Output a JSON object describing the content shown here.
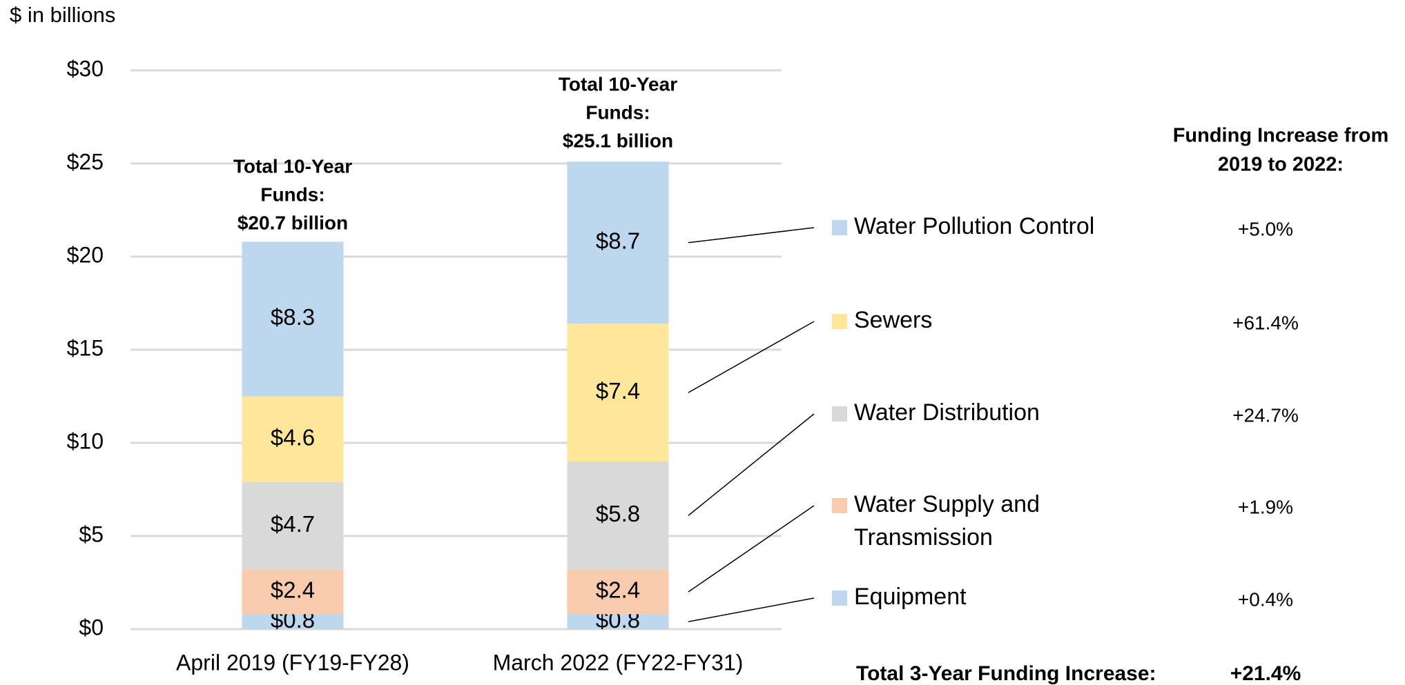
{
  "chart_data": {
    "type": "stacked_bar",
    "axis_label": "$ in billions",
    "categories": [
      "April 2019 (FY19-FY28)",
      "March 2022 (FY22-FY31)"
    ],
    "series": [
      {
        "name": "Equipment",
        "color": "#bdd7ee",
        "values": [
          0.8,
          0.8
        ],
        "value_labels": [
          "$0.8",
          "$0.8"
        ],
        "increase": "+0.4%"
      },
      {
        "name": "Water Supply and Transmission",
        "color": "#f8cbad",
        "values": [
          2.4,
          2.4
        ],
        "value_labels": [
          "$2.4",
          "$2.4"
        ],
        "increase": "+1.9%"
      },
      {
        "name": "Water Distribution",
        "color": "#d9d9d9",
        "values": [
          4.7,
          5.8
        ],
        "value_labels": [
          "$4.7",
          "$5.8"
        ],
        "increase": "+24.7%"
      },
      {
        "name": "Sewers",
        "color": "#ffe699",
        "values": [
          4.6,
          7.4
        ],
        "value_labels": [
          "$4.6",
          "$7.4"
        ],
        "increase": "+61.4%"
      },
      {
        "name": "Water Pollution Control",
        "color": "#bdd7ee",
        "values": [
          8.3,
          8.7
        ],
        "value_labels": [
          "$8.3",
          "$8.7"
        ],
        "increase": "+5.0%"
      }
    ],
    "totals": [
      {
        "value": 20.7,
        "lines": [
          "Total 10-Year",
          "Funds:",
          "$20.7 billion"
        ]
      },
      {
        "value": 25.1,
        "lines": [
          "Total 10-Year",
          "Funds:",
          "$25.1 billion"
        ]
      }
    ],
    "increase_header": [
      "Funding Increase from",
      "2019 to 2022:"
    ],
    "total_increase_label": "Total 3-Year Funding Increase:",
    "total_increase": "+21.4%",
    "ylim": [
      0,
      30
    ],
    "yticks": [
      {
        "value": 0,
        "label": "$0"
      },
      {
        "value": 5,
        "label": "$5"
      },
      {
        "value": 10,
        "label": "$10"
      },
      {
        "value": 15,
        "label": "$15"
      },
      {
        "value": 20,
        "label": "$20"
      },
      {
        "value": 25,
        "label": "$25"
      },
      {
        "value": 30,
        "label": "$30"
      }
    ],
    "grid": true
  }
}
